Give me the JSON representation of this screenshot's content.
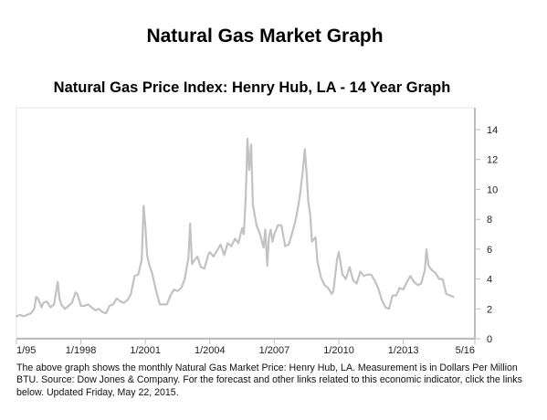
{
  "page_title": "Natural Gas Market Graph",
  "caption": "The above graph shows the monthly Natural Gas Market Price: Henry Hub, LA. Measurement is in Dollars Per Million BTU. Source: Dow Jones & Company. For the forecast and other links related to this economic indicator, click the links below. Updated Friday, May 22, 2015.",
  "colors": {
    "line": "#c2c2c2",
    "axis": "#bdbdbd",
    "frame": "#e4e4e4"
  },
  "chart_data": {
    "type": "line",
    "title": "Natural Gas Price Index: Henry Hub, LA - 14 Year Graph",
    "xlabel": "",
    "ylabel": "",
    "x_tick_labels": [
      "1/95",
      "1/1998",
      "1/2001",
      "1/2004",
      "1/2007",
      "1/2010",
      "1/2013",
      "5/16"
    ],
    "x_ticks": [
      1995.0,
      1998.0,
      2001.0,
      2004.0,
      2007.0,
      2010.0,
      2013.0,
      2016.33
    ],
    "xlim": [
      1995.0,
      2016.33
    ],
    "y_tick_labels": [
      "0",
      "2",
      "4",
      "6",
      "8",
      "10",
      "12",
      "14"
    ],
    "y_ticks": [
      0,
      2,
      4,
      6,
      8,
      10,
      12,
      14
    ],
    "ylim": [
      0,
      14
    ],
    "y_axis_position": "right",
    "grid": false,
    "series": [
      {
        "x": [
          1995.0,
          1995.17,
          1995.33,
          1995.5,
          1995.67,
          1995.83,
          1995.92,
          1996.0,
          1996.17,
          1996.25,
          1996.42,
          1996.58,
          1996.75,
          1996.92,
          1997.0,
          1997.08,
          1997.25,
          1997.42,
          1997.58,
          1997.75,
          1997.83,
          1997.92,
          1998.0,
          1998.17,
          1998.33,
          1998.5,
          1998.67,
          1998.83,
          1999.0,
          1999.17,
          1999.33,
          1999.5,
          1999.67,
          1999.83,
          2000.0,
          2000.17,
          2000.33,
          2000.5,
          2000.67,
          2000.83,
          2000.92,
          2001.0,
          2001.08,
          2001.17,
          2001.33,
          2001.5,
          2001.67,
          2001.83,
          2002.0,
          2002.17,
          2002.33,
          2002.5,
          2002.67,
          2002.83,
          2003.0,
          2003.08,
          2003.17,
          2003.25,
          2003.42,
          2003.58,
          2003.75,
          2003.92,
          2004.0,
          2004.17,
          2004.33,
          2004.5,
          2004.67,
          2004.83,
          2005.0,
          2005.17,
          2005.33,
          2005.5,
          2005.58,
          2005.67,
          2005.75,
          2005.83,
          2005.92,
          2006.0,
          2006.17,
          2006.33,
          2006.5,
          2006.58,
          2006.67,
          2006.75,
          2006.83,
          2006.92,
          2007.0,
          2007.17,
          2007.33,
          2007.5,
          2007.67,
          2007.83,
          2008.0,
          2008.17,
          2008.33,
          2008.42,
          2008.5,
          2008.58,
          2008.67,
          2008.75,
          2008.92,
          2009.0,
          2009.17,
          2009.33,
          2009.5,
          2009.67,
          2009.75,
          2009.83,
          2009.92,
          2010.0,
          2010.17,
          2010.33,
          2010.5,
          2010.67,
          2010.83,
          2011.0,
          2011.17,
          2011.33,
          2011.5,
          2011.67,
          2011.83,
          2012.0,
          2012.17,
          2012.33,
          2012.5,
          2012.67,
          2012.83,
          2013.0,
          2013.17,
          2013.33,
          2013.5,
          2013.67,
          2013.83,
          2014.0,
          2014.08,
          2014.17,
          2014.33,
          2014.5,
          2014.67,
          2014.83,
          2015.0,
          2015.17,
          2015.33
        ],
        "values": [
          1.5,
          1.6,
          1.5,
          1.6,
          1.7,
          2.0,
          2.8,
          2.7,
          2.1,
          2.4,
          2.5,
          2.1,
          2.3,
          3.8,
          2.7,
          2.3,
          2.0,
          2.2,
          2.4,
          3.1,
          3.0,
          2.6,
          2.2,
          2.2,
          2.3,
          2.1,
          1.9,
          2.0,
          1.8,
          1.7,
          2.2,
          2.3,
          2.7,
          2.5,
          2.4,
          2.6,
          3.0,
          4.2,
          4.3,
          5.3,
          8.9,
          7.5,
          5.6,
          5.0,
          4.3,
          3.2,
          2.3,
          2.3,
          2.3,
          2.9,
          3.3,
          3.2,
          3.4,
          4.0,
          5.4,
          7.7,
          5.0,
          5.2,
          5.5,
          4.8,
          4.7,
          5.6,
          5.8,
          5.5,
          5.9,
          6.3,
          5.6,
          6.4,
          6.2,
          6.7,
          6.4,
          7.4,
          7.0,
          9.5,
          13.4,
          11.3,
          13.0,
          9.0,
          7.6,
          7.0,
          6.1,
          7.3,
          4.9,
          6.8,
          7.3,
          6.5,
          7.0,
          7.6,
          7.6,
          6.2,
          6.3,
          7.1,
          8.0,
          9.4,
          11.3,
          12.7,
          11.1,
          9.2,
          8.3,
          6.5,
          6.8,
          5.2,
          4.1,
          3.6,
          3.4,
          3.0,
          3.2,
          4.2,
          5.3,
          5.8,
          4.3,
          4.0,
          4.8,
          3.9,
          3.7,
          4.5,
          4.2,
          4.3,
          4.3,
          3.9,
          3.4,
          2.6,
          2.1,
          2.0,
          2.9,
          2.9,
          3.4,
          3.3,
          3.8,
          4.2,
          3.8,
          3.6,
          3.7,
          4.6,
          6.0,
          4.9,
          4.6,
          4.4,
          4.0,
          4.0,
          3.0,
          2.9,
          2.8
        ]
      }
    ]
  }
}
